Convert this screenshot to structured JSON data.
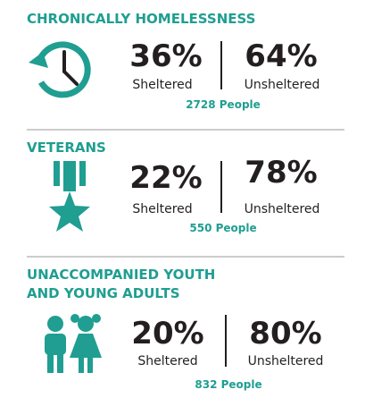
{
  "sections": [
    {
      "title": [
        "CHRONICALLY HOMELESSNESS"
      ],
      "sheltered": {
        "percent": "36%",
        "label": "Sheltered"
      },
      "unsheltered": {
        "percent": "64%",
        "label": "Unsheltered"
      },
      "total": "2728 People"
    },
    {
      "title": [
        "VETERANS"
      ],
      "sheltered": {
        "percent": "22%",
        "label": "Sheltered"
      },
      "unsheltered": {
        "percent": "78%",
        "label": "Unsheltered"
      },
      "total": "550 People"
    },
    {
      "title": [
        "UNACCOMPANIED YOUTH",
        "AND YOUNG ADULTS"
      ],
      "sheltered": {
        "percent": "20%",
        "label": "Sheltered"
      },
      "unsheltered": {
        "percent": "80%",
        "label": "Unsheltered"
      },
      "total": "832 People"
    }
  ]
}
